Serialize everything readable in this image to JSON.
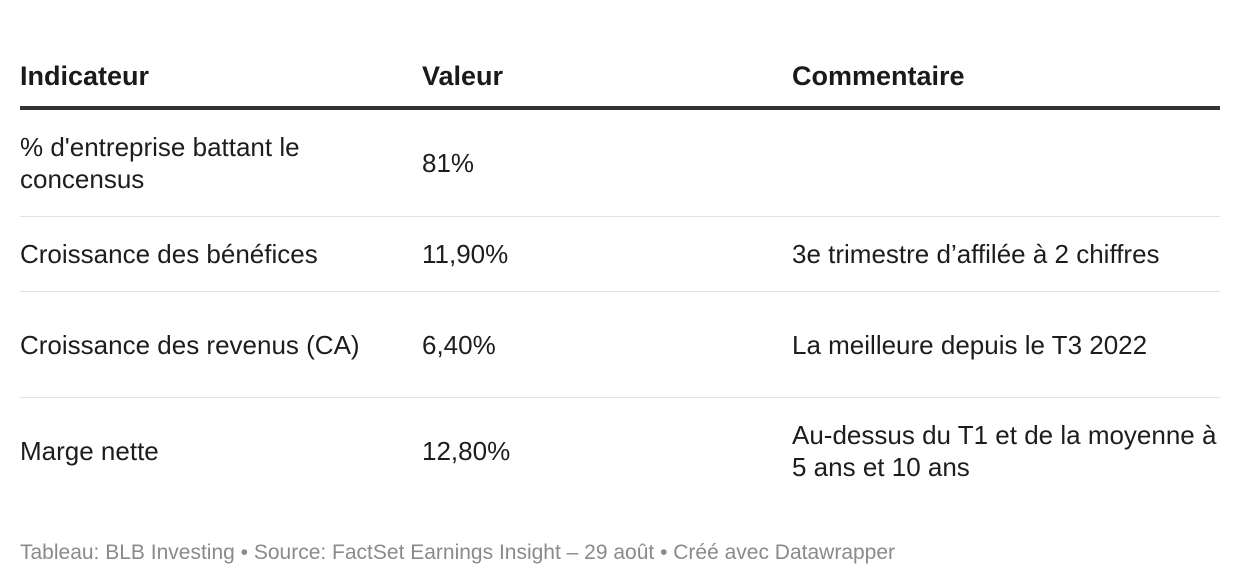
{
  "table": {
    "headers": [
      "Indicateur",
      "Valeur",
      "Commentaire"
    ],
    "rows": [
      {
        "indicator": "% d'entreprise battant le concensus",
        "value": "81%",
        "comment": ""
      },
      {
        "indicator": "Croissance des bénéfices",
        "value": "11,90%",
        "comment": "3e trimestre d’affilée à 2 chiffres"
      },
      {
        "indicator": "Croissance des revenus (CA)",
        "value": "6,40%",
        "comment": "La meilleure depuis le T3 2022"
      },
      {
        "indicator": "Marge nette",
        "value": "12,80%",
        "comment": "Au-dessus du T1 et de la moyenne à 5 ans et 10 ans"
      }
    ]
  },
  "footer": {
    "text": "Tableau: BLB Investing • Source: FactSet Earnings Insight – 29 août • Créé avec Datawrapper"
  }
}
